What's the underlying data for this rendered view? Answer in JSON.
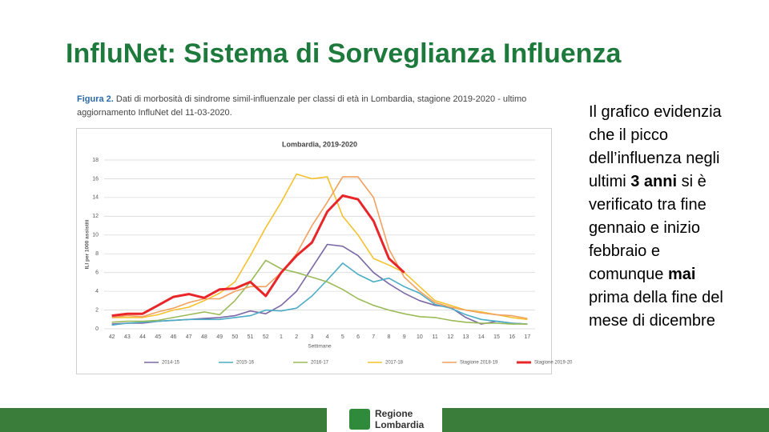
{
  "slide": {
    "title": "InfluNet: Sistema di Sorveglianza Influenza",
    "caption": {
      "label": "Figura 2.",
      "text": "Dati di morbosità di sindrome simil-influenzale per classi di età in Lombardia, stagione 2019-2020 - ultimo aggiornamento InfluNet del 11-03-2020."
    },
    "body": [
      {
        "text": "Il grafico evidenzia che il picco dell’influenza negli ultimi ",
        "bold": false
      },
      {
        "text": "3 anni",
        "bold": true
      },
      {
        "text": " si è verificato tra fine gennaio e inizio febbraio e comunque ",
        "bold": false
      },
      {
        "text": "mai",
        "bold": true
      },
      {
        "text": " prima della fine del mese di dicembre",
        "bold": false
      }
    ],
    "logo": [
      "Regione",
      "Lombardia"
    ]
  },
  "chart_data": {
    "type": "line",
    "title": "Lombardia, 2019-2020",
    "xlabel": "Settimane",
    "ylabel": "ILI per 1000 assistiti",
    "categories": [
      "42",
      "43",
      "44",
      "45",
      "46",
      "47",
      "48",
      "49",
      "50",
      "51",
      "52",
      "1",
      "2",
      "3",
      "4",
      "5",
      "6",
      "7",
      "8",
      "9",
      "10",
      "11",
      "12",
      "13",
      "14",
      "15",
      "16",
      "17"
    ],
    "ylim": [
      0,
      18
    ],
    "yticks": [
      0,
      2,
      4,
      6,
      8,
      10,
      12,
      14,
      16,
      18
    ],
    "grid": true,
    "legend": "bottom",
    "series": [
      {
        "name": "2014-15",
        "color": "#7b68a6",
        "values": [
          0.5,
          0.6,
          0.6,
          0.8,
          0.9,
          1.0,
          1.1,
          1.2,
          1.4,
          1.9,
          1.6,
          2.5,
          4.0,
          6.5,
          9.0,
          8.8,
          7.8,
          6.0,
          4.8,
          3.8,
          3.0,
          2.5,
          2.3,
          1.2,
          0.5,
          0.8,
          0.6,
          0.5
        ]
      },
      {
        "name": "2015-16",
        "color": "#4bacc6",
        "values": [
          0.4,
          0.6,
          0.7,
          0.8,
          0.9,
          1.0,
          1.0,
          1.0,
          1.2,
          1.4,
          2.0,
          1.9,
          2.2,
          3.5,
          5.2,
          7.0,
          5.8,
          5.0,
          5.4,
          4.5,
          3.8,
          2.6,
          2.2,
          1.5,
          1.0,
          0.8,
          0.6,
          0.5
        ]
      },
      {
        "name": "2016-17",
        "color": "#9bbb59",
        "values": [
          0.7,
          0.8,
          0.8,
          0.9,
          1.2,
          1.5,
          1.8,
          1.5,
          3.0,
          5.0,
          7.3,
          6.4,
          6.0,
          5.5,
          5.0,
          4.2,
          3.2,
          2.5,
          2.0,
          1.6,
          1.3,
          1.2,
          0.9,
          0.7,
          0.6,
          0.6,
          0.5,
          0.5
        ]
      },
      {
        "name": "2017-18",
        "color": "#f5c12c",
        "values": [
          1.2,
          1.2,
          1.2,
          1.5,
          2.0,
          2.3,
          3.0,
          3.8,
          5.0,
          7.8,
          10.8,
          13.5,
          16.5,
          16.0,
          16.2,
          12.0,
          10.0,
          7.5,
          6.8,
          6.0,
          4.5,
          3.0,
          2.5,
          2.0,
          1.8,
          1.5,
          1.2,
          1.0
        ]
      },
      {
        "name": "Stagione 2018-19",
        "color": "#f2a15f",
        "values": [
          1.2,
          1.4,
          1.3,
          1.8,
          2.2,
          2.8,
          3.2,
          3.2,
          4.0,
          4.5,
          4.5,
          6.0,
          8.0,
          11.0,
          13.5,
          16.2,
          16.2,
          14.0,
          8.5,
          5.5,
          4.0,
          2.8,
          2.3,
          2.0,
          1.7,
          1.5,
          1.4,
          1.1
        ]
      },
      {
        "name": "Stagione 2019-20",
        "color": "#e8262a",
        "width": 3,
        "values": [
          1.4,
          1.6,
          1.6,
          2.5,
          3.4,
          3.7,
          3.3,
          4.2,
          4.3,
          5.0,
          3.5,
          6.0,
          7.8,
          9.2,
          12.5,
          14.2,
          13.8,
          11.5,
          7.5,
          6.0,
          null,
          null,
          null,
          null,
          null,
          null,
          null,
          null
        ]
      }
    ]
  }
}
